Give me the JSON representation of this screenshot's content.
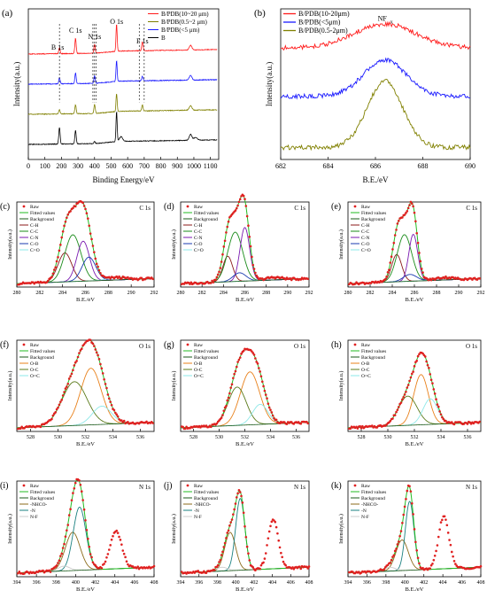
{
  "chart_data": [
    {
      "id": "a",
      "panel_label": "(a)",
      "type": "line",
      "xlabel": "Binding Energy/eV",
      "ylabel": "Intensity(a.u.)",
      "xlim": [
        0,
        1150
      ],
      "xticks": [
        0,
        100,
        200,
        300,
        400,
        500,
        600,
        700,
        800,
        900,
        1000,
        1100
      ],
      "ylim": [
        0,
        100
      ],
      "legend_position": "top-right",
      "series": [
        {
          "name": "B",
          "color": "#000000",
          "offset": 10,
          "peaks": [
            [
              188,
              11,
              4
            ],
            [
              285,
              9,
              4
            ],
            [
              400,
              1.5,
              4
            ],
            [
              533,
              20,
              3.5
            ],
            [
              560,
              3,
              10
            ],
            [
              980,
              4,
              8
            ],
            [
              1010,
              2,
              10
            ]
          ],
          "background": [
            [
              0,
              0
            ],
            [
              400,
              0.5
            ],
            [
              550,
              2
            ],
            [
              1150,
              3
            ]
          ]
        },
        {
          "name": "B/PDB(<5 μm)",
          "color": "#1a1aff",
          "offset": 50,
          "peaks": [
            [
              188,
              4,
              4
            ],
            [
              285,
              7,
              4
            ],
            [
              400,
              5,
              4
            ],
            [
              533,
              14,
              3.5
            ],
            [
              689,
              3,
              4
            ],
            [
              980,
              3,
              8
            ]
          ],
          "background": [
            [
              0,
              0
            ],
            [
              400,
              0.5
            ],
            [
              550,
              2
            ],
            [
              1150,
              3
            ]
          ]
        },
        {
          "name": "B/PDB(0.5~2 μm)",
          "color": "#808000",
          "offset": 30,
          "peaks": [
            [
              188,
              3,
              4
            ],
            [
              285,
              6,
              4
            ],
            [
              400,
              6,
              4
            ],
            [
              533,
              12,
              3.5
            ],
            [
              689,
              4,
              4
            ],
            [
              980,
              3,
              8
            ]
          ],
          "background": [
            [
              0,
              0
            ],
            [
              400,
              0.5
            ],
            [
              550,
              2
            ],
            [
              1150,
              3
            ]
          ]
        },
        {
          "name": "B/PDB(10~20 μm)",
          "color": "#ff1a1a",
          "offset": 70,
          "peaks": [
            [
              188,
              4,
              4
            ],
            [
              285,
              10,
              4
            ],
            [
              400,
              6,
              4
            ],
            [
              533,
              18,
              3.5
            ],
            [
              689,
              6,
              4
            ],
            [
              980,
              3,
              8
            ]
          ],
          "background": [
            [
              0,
              0
            ],
            [
              400,
              0.5
            ],
            [
              550,
              2
            ],
            [
              1150,
              3
            ]
          ]
        }
      ],
      "annotations": [
        {
          "text": "B 1s",
          "x": 188
        },
        {
          "text": "C 1s",
          "x": 285
        },
        {
          "text": "N 1s",
          "x": 400
        },
        {
          "text": "O 1s",
          "x": 533
        },
        {
          "text": "F 1s",
          "x": 689
        }
      ],
      "guide_lines": [
        188,
        400,
        390,
        410,
        670,
        700
      ]
    },
    {
      "id": "b",
      "panel_label": "(b)",
      "type": "line",
      "xlabel": "B.E./eV",
      "ylabel": "Intensity(a.u.)",
      "xlim": [
        682,
        690
      ],
      "xticks": [
        682,
        684,
        686,
        688,
        690
      ],
      "ylim": [
        0,
        100
      ],
      "legend_position": "top-left",
      "annotations": [
        {
          "text": "NF",
          "subscript": "x",
          "x": 686.4
        }
      ],
      "series": [
        {
          "name": "B/PDB(10-20μm)",
          "color": "#ff1a1a",
          "base": 74,
          "center": 686.4,
          "height": 16,
          "width": 1.3
        },
        {
          "name": "B/PDB(<5μm)",
          "color": "#1a1aff",
          "base": 42,
          "center": 686.4,
          "height": 24,
          "width": 0.9
        },
        {
          "name": "B/PDB(0.5-2μm)",
          "color": "#808000",
          "base": 8,
          "center": 686.4,
          "height": 44,
          "width": 0.75
        }
      ]
    },
    {
      "id": "c",
      "panel_label": "(c)",
      "title": "C 1s",
      "type": "line",
      "xlabel": "B.E./eV",
      "ylabel": "Intensity(a.u.)",
      "xlim": [
        280,
        292
      ],
      "xticks": [
        280,
        282,
        284,
        286,
        288,
        290,
        292
      ],
      "ylim": [
        0,
        100
      ],
      "legend": [
        "Raw",
        "Fitted values",
        "Background",
        "C-H",
        "C-C",
        "C-N",
        "C-O",
        "C=O"
      ],
      "components": [
        {
          "name": "C-H",
          "color": "#8b1a1a",
          "center": 284.2,
          "height": 34,
          "width": 0.6
        },
        {
          "name": "C-C",
          "color": "#1a8b1a",
          "center": 284.9,
          "height": 55,
          "width": 0.7
        },
        {
          "name": "C-N",
          "color": "#7a1ab0",
          "center": 285.8,
          "height": 47,
          "width": 0.55
        },
        {
          "name": "C-O",
          "color": "#1a3ab0",
          "center": 286.3,
          "height": 28,
          "width": 0.6
        },
        {
          "name": "C=O",
          "color": "#8ee8e8",
          "center": 288.7,
          "height": 3,
          "width": 0.8
        }
      ]
    },
    {
      "id": "d",
      "panel_label": "(d)",
      "title": "C 1s",
      "type": "line",
      "xlabel": "B.E./eV",
      "ylabel": "Intensity(a.u.)",
      "xlim": [
        280,
        292
      ],
      "xticks": [
        280,
        282,
        284,
        286,
        288,
        290,
        292
      ],
      "ylim": [
        0,
        100
      ],
      "legend": [
        "Raw",
        "Fitted values",
        "Background",
        "C-H",
        "C-C",
        "C-N",
        "C-O",
        "C=O"
      ],
      "components": [
        {
          "name": "C-H",
          "color": "#8b1a1a",
          "center": 284.4,
          "height": 30,
          "width": 0.45
        },
        {
          "name": "C-C",
          "color": "#1a8b1a",
          "center": 285.1,
          "height": 58,
          "width": 0.7
        },
        {
          "name": "C-N",
          "color": "#7a1ab0",
          "center": 286.0,
          "height": 63,
          "width": 0.45
        },
        {
          "name": "C-O",
          "color": "#1a3ab0",
          "center": 285.5,
          "height": 10,
          "width": 0.6
        },
        {
          "name": "C=O",
          "color": "#8ee8e8",
          "center": 288.7,
          "height": 3,
          "width": 0.8
        }
      ]
    },
    {
      "id": "e",
      "panel_label": "(e)",
      "title": "C 1s",
      "type": "line",
      "xlabel": "B.E./eV",
      "ylabel": "Intensity(a.u.)",
      "xlim": [
        280,
        292
      ],
      "xticks": [
        280,
        282,
        284,
        286,
        288,
        290,
        292
      ],
      "ylim": [
        0,
        100
      ],
      "legend": [
        "Raw",
        "Fitted values",
        "Background",
        "C-H",
        "C-C",
        "C-N",
        "C-O",
        "C=O"
      ],
      "components": [
        {
          "name": "C-H",
          "color": "#8b1a1a",
          "center": 284.4,
          "height": 32,
          "width": 0.45
        },
        {
          "name": "C-C",
          "color": "#1a8b1a",
          "center": 285.1,
          "height": 55,
          "width": 0.65
        },
        {
          "name": "C-N",
          "color": "#7a1ab0",
          "center": 285.9,
          "height": 55,
          "width": 0.4
        },
        {
          "name": "C-O",
          "color": "#1a3ab0",
          "center": 285.6,
          "height": 8,
          "width": 0.6
        },
        {
          "name": "C=O",
          "color": "#8ee8e8",
          "center": 288.7,
          "height": 3,
          "width": 0.8
        }
      ]
    },
    {
      "id": "f",
      "panel_label": "(f)",
      "title": "O 1s",
      "type": "line",
      "xlabel": "B.E./eV",
      "ylabel": "Intensity(a.u.)",
      "xlim": [
        527,
        537
      ],
      "xticks": [
        528,
        530,
        532,
        534,
        536
      ],
      "ylim": [
        0,
        100
      ],
      "legend": [
        "Raw",
        "Fitted values",
        "Background",
        "O-B",
        "O-C",
        "O=C"
      ],
      "components": [
        {
          "name": "O-B",
          "color": "#e8801a",
          "center": 532.4,
          "height": 62,
          "width": 0.75
        },
        {
          "name": "O-C",
          "color": "#5a7a1a",
          "center": 531.2,
          "height": 48,
          "width": 0.9
        },
        {
          "name": "O=C",
          "color": "#8ee8e8",
          "center": 533.2,
          "height": 20,
          "width": 0.7
        }
      ]
    },
    {
      "id": "g",
      "panel_label": "(g)",
      "title": "O 1s",
      "type": "line",
      "xlabel": "B.E./eV",
      "ylabel": "Intensity(a.u.)",
      "xlim": [
        527,
        537
      ],
      "xticks": [
        528,
        530,
        532,
        534,
        536
      ],
      "ylim": [
        0,
        100
      ],
      "legend": [
        "Raw",
        "Fitted values",
        "Background",
        "O-B",
        "O-C",
        "O=C"
      ],
      "components": [
        {
          "name": "O-B",
          "color": "#e8801a",
          "center": 532.4,
          "height": 58,
          "width": 0.75
        },
        {
          "name": "O-C",
          "color": "#5a7a1a",
          "center": 531.4,
          "height": 42,
          "width": 0.7
        },
        {
          "name": "O=C",
          "color": "#8ee8e8",
          "center": 533.2,
          "height": 22,
          "width": 0.6
        }
      ]
    },
    {
      "id": "h",
      "panel_label": "(h)",
      "title": "O 1s",
      "type": "line",
      "xlabel": "B.E./eV",
      "ylabel": "Intensity(a.u.)",
      "xlim": [
        527,
        537
      ],
      "xticks": [
        528,
        530,
        532,
        534,
        536
      ],
      "ylim": [
        0,
        100
      ],
      "legend": [
        "Raw",
        "Fitted values",
        "Background",
        "O-B",
        "O-C",
        "O=C"
      ],
      "components": [
        {
          "name": "O-B",
          "color": "#e8801a",
          "center": 532.5,
          "height": 55,
          "width": 0.55
        },
        {
          "name": "O-C",
          "color": "#5a7a1a",
          "center": 531.5,
          "height": 32,
          "width": 0.7
        },
        {
          "name": "O=C",
          "color": "#8ee8e8",
          "center": 533.2,
          "height": 28,
          "width": 0.55
        }
      ]
    },
    {
      "id": "i",
      "panel_label": "(i)",
      "title": "N 1s",
      "type": "line",
      "xlabel": "B.E./eV",
      "ylabel": "Intensity(a.u.)",
      "xlim": [
        394,
        408
      ],
      "xticks": [
        394,
        396,
        398,
        400,
        402,
        404,
        406,
        408
      ],
      "ylim": [
        0,
        100
      ],
      "legend": [
        "Raw",
        "Fitted values",
        "Background",
        "-NHCO-",
        "-N",
        "N-F"
      ],
      "components": [
        {
          "name": "-NHCO-",
          "color": "#8b6a1a",
          "center": 399.7,
          "height": 40,
          "width": 0.75
        },
        {
          "name": "-N",
          "color": "#1a8080",
          "center": 400.4,
          "height": 66,
          "width": 0.65
        },
        {
          "name": "N-F",
          "color": "#cccccc",
          "center": 398.8,
          "height": 5,
          "width": 0.6
        }
      ],
      "raw_extra": {
        "center": 404.1,
        "height": 40,
        "width": 0.6
      }
    },
    {
      "id": "j",
      "panel_label": "(j)",
      "title": "N 1s",
      "type": "line",
      "xlabel": "B.E./eV",
      "ylabel": "Intensity(a.u.)",
      "xlim": [
        394,
        408
      ],
      "xticks": [
        394,
        396,
        398,
        400,
        402,
        404,
        406,
        408
      ],
      "ylim": [
        0,
        100
      ],
      "legend": [
        "Raw",
        "Fitted values",
        "Background",
        "-NHCO-",
        "-N",
        "N-F"
      ],
      "components": [
        {
          "name": "-NHCO-",
          "color": "#8b6a1a",
          "center": 399.4,
          "height": 40,
          "width": 0.6
        },
        {
          "name": "-N",
          "color": "#1a8080",
          "center": 400.5,
          "height": 75,
          "width": 0.5
        },
        {
          "name": "N-F",
          "color": "#cccccc",
          "center": 398.5,
          "height": 4,
          "width": 0.6
        }
      ],
      "raw_extra": {
        "center": 404.1,
        "height": 52,
        "width": 0.55
      }
    },
    {
      "id": "k",
      "panel_label": "(k)",
      "title": "N 1s",
      "type": "line",
      "xlabel": "B.E./eV",
      "ylabel": "Intensity(a.u.)",
      "xlim": [
        394,
        408
      ],
      "xticks": [
        394,
        396,
        398,
        400,
        402,
        404,
        406,
        408
      ],
      "ylim": [
        0,
        100
      ],
      "legend": [
        "Raw",
        "Fitted values",
        "Background",
        "-NHCO-",
        "-N",
        "N-F"
      ],
      "components": [
        {
          "name": "-NHCO-",
          "color": "#8b6a1a",
          "center": 399.7,
          "height": 32,
          "width": 0.65
        },
        {
          "name": "-N",
          "color": "#1a8080",
          "center": 400.5,
          "height": 72,
          "width": 0.45
        },
        {
          "name": "N-F",
          "color": "#cccccc",
          "center": 398.4,
          "height": 4,
          "width": 0.6
        }
      ],
      "raw_extra": {
        "center": 404.1,
        "height": 55,
        "width": 0.55
      }
    }
  ]
}
